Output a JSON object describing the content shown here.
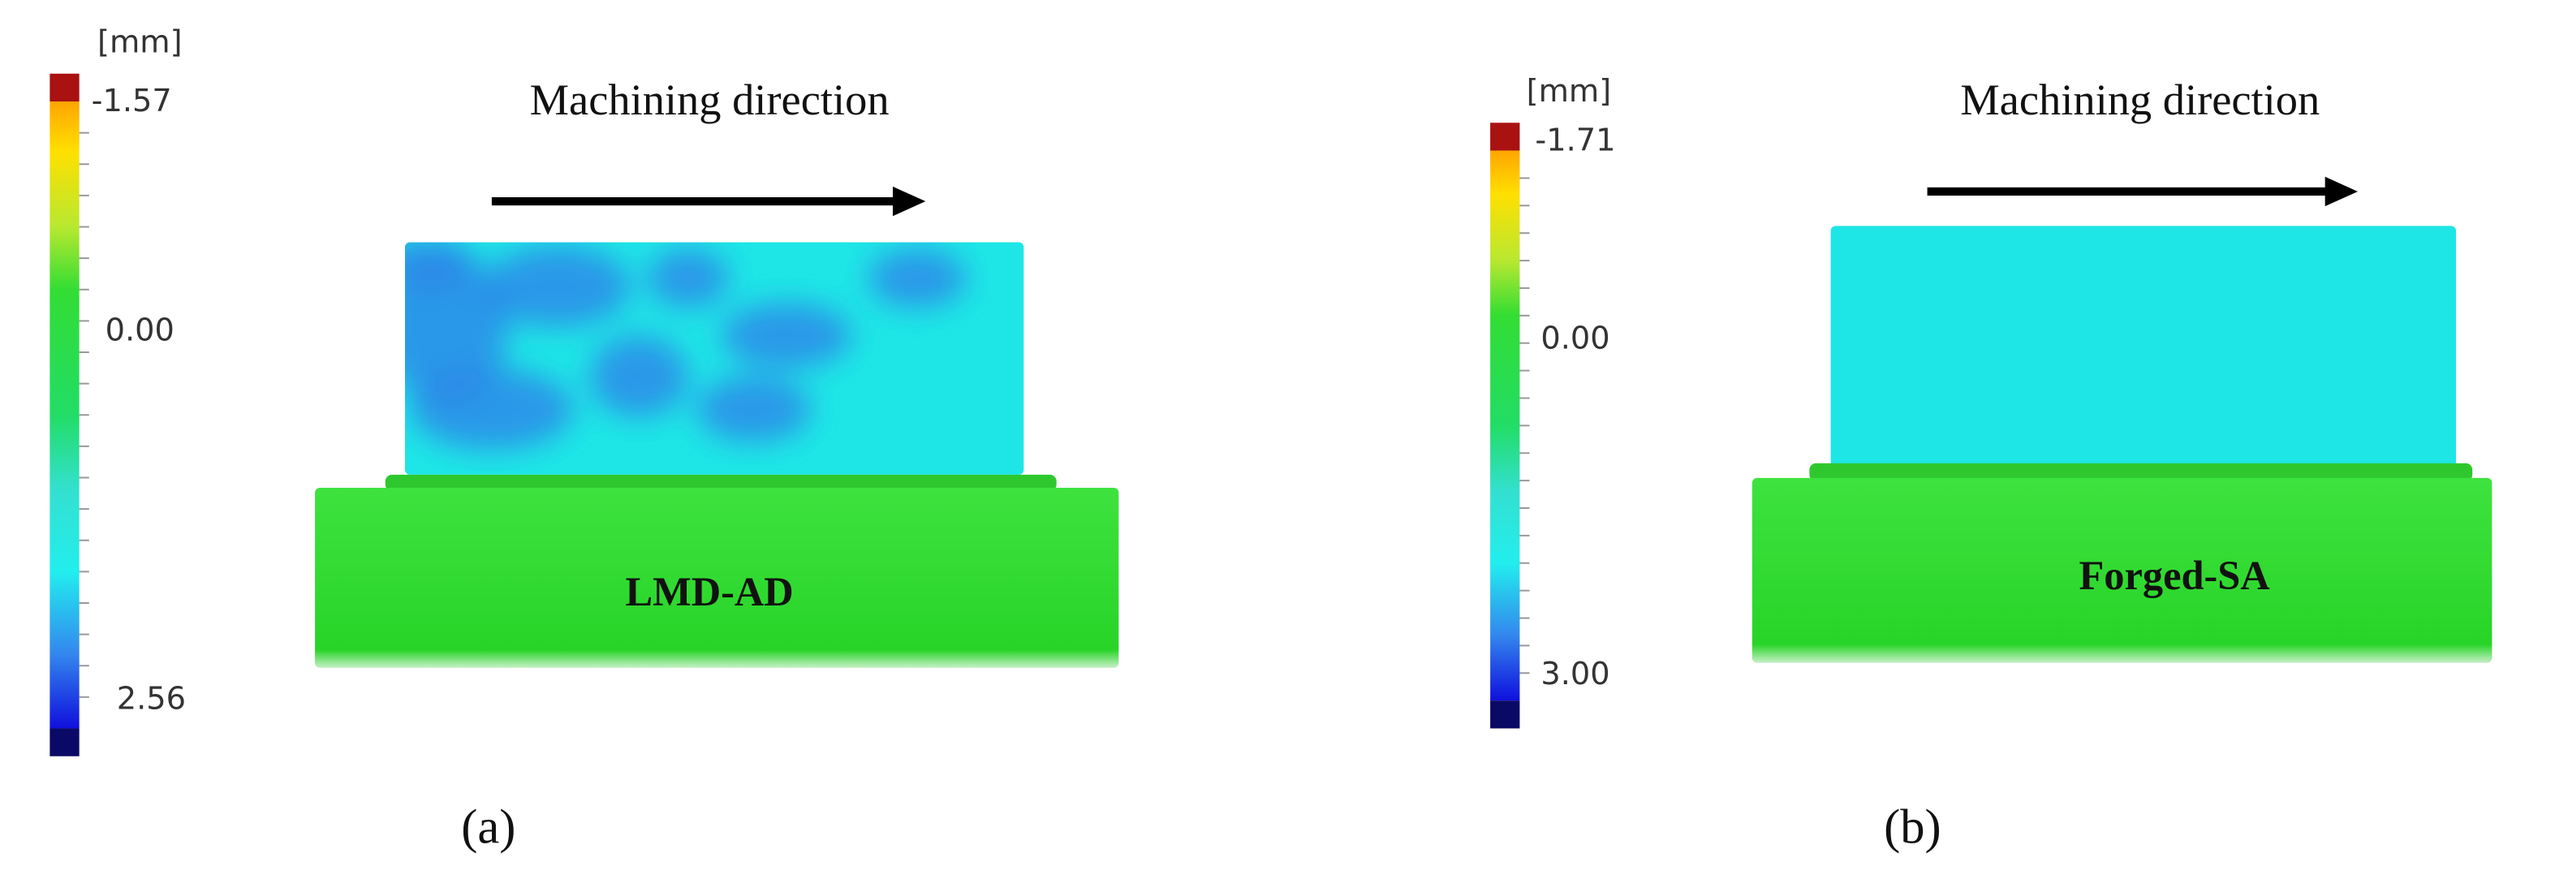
{
  "panels": [
    {
      "unit": "[mm]",
      "scale_labels": [
        "-1.57",
        "0.00",
        "2.56"
      ],
      "direction": "Machining direction",
      "sample": "LMD-AD",
      "caption": "(a)"
    },
    {
      "unit": "[mm]",
      "scale_labels": [
        "-1.71",
        "0.00",
        "3.00"
      ],
      "direction": "Machining direction",
      "sample": "Forged-SA",
      "caption": "(b)"
    }
  ]
}
